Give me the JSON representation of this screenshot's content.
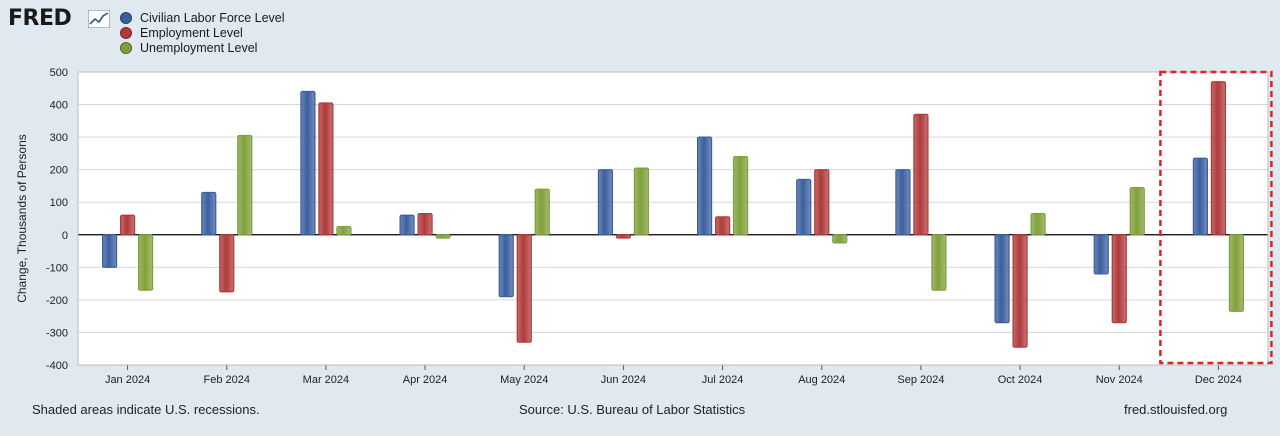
{
  "header": {
    "logo_text": "FRED",
    "logo_icon": "trend-line-icon"
  },
  "legend": [
    {
      "label": "Civilian Labor Force Level",
      "color": "#3b5f9e"
    },
    {
      "label": "Employment Level",
      "color": "#b03a3a"
    },
    {
      "label": "Unemployment Level",
      "color": "#7fa03a"
    }
  ],
  "footer": {
    "left": "Shaded areas indicate U.S. recessions.",
    "center": "Source: U.S. Bureau of Labor Statistics",
    "right": "fred.stlouisfed.org"
  },
  "chart_data": {
    "type": "bar",
    "ylabel": "Change, Thousands of Persons",
    "ylim": [
      -400,
      500
    ],
    "yticks": [
      500,
      400,
      300,
      200,
      100,
      0,
      -100,
      -200,
      -300,
      -400
    ],
    "categories": [
      "Jan 2024",
      "Feb 2024",
      "Mar 2024",
      "Apr 2024",
      "May 2024",
      "Jun 2024",
      "Jul 2024",
      "Aug 2024",
      "Sep 2024",
      "Oct 2024",
      "Nov 2024",
      "Dec 2024"
    ],
    "series": [
      {
        "name": "Civilian Labor Force Level",
        "color": "#3b5f9e",
        "values": [
          -100,
          130,
          440,
          60,
          -190,
          200,
          300,
          170,
          200,
          -270,
          -120,
          235
        ]
      },
      {
        "name": "Employment Level",
        "color": "#b03a3a",
        "values": [
          60,
          -175,
          405,
          65,
          -330,
          -10,
          55,
          200,
          370,
          -345,
          -270,
          470
        ]
      },
      {
        "name": "Unemployment Level",
        "color": "#7fa03a",
        "values": [
          -170,
          305,
          25,
          -10,
          140,
          205,
          240,
          -25,
          -170,
          65,
          145,
          -235
        ]
      }
    ],
    "highlight_category": "Dec 2024",
    "grid": true
  }
}
